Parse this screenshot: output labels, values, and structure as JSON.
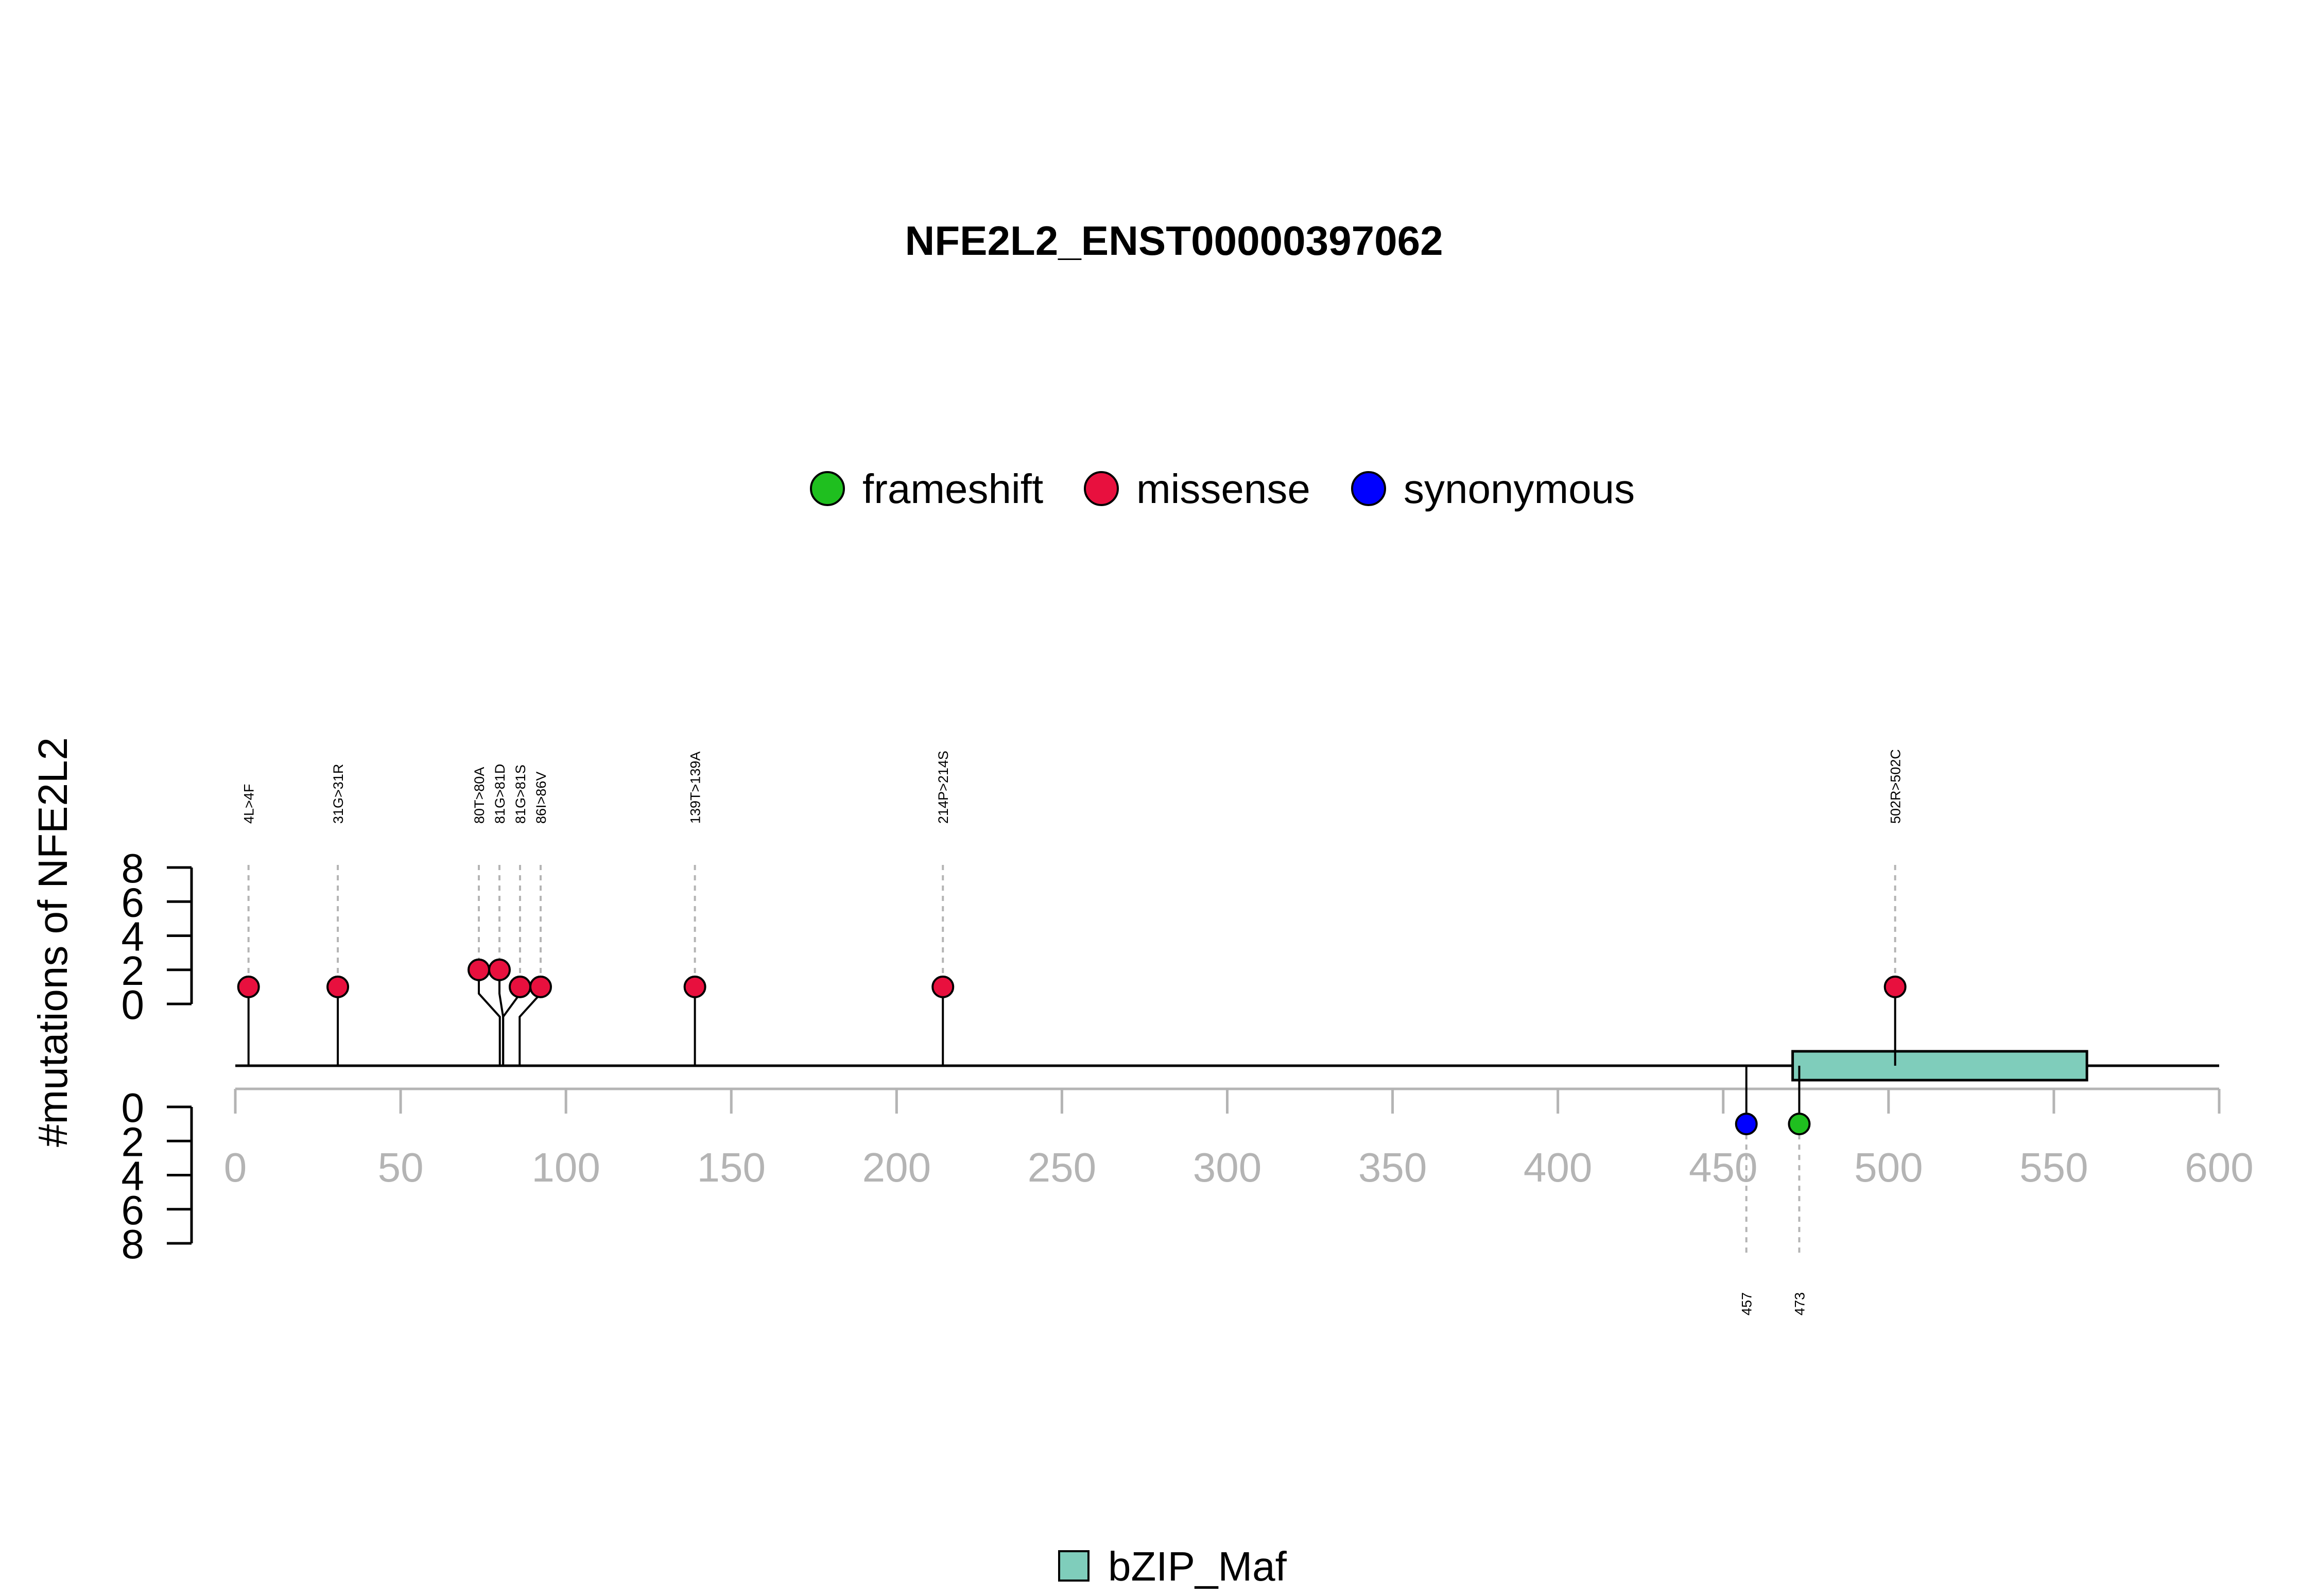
{
  "chart_data": {
    "type": "lollipop",
    "title": "NFE2L2_ENST00000397062",
    "ylabel": "#mutations of NFE2L2",
    "xlim": [
      0,
      600
    ],
    "x_ticks": [
      0,
      50,
      100,
      150,
      200,
      250,
      300,
      350,
      400,
      450,
      500,
      550,
      600
    ],
    "y_ticks": [
      0,
      2,
      4,
      6,
      8
    ],
    "ylim_top": [
      0,
      8
    ],
    "ylim_bottom": [
      0,
      8
    ],
    "legend": {
      "placement": "top-center",
      "entries": [
        {
          "label": "frameshift",
          "color": "#1fbf1f"
        },
        {
          "label": "missense",
          "color": "#e8103e"
        },
        {
          "label": "synonymous",
          "color": "#0000ff"
        }
      ]
    },
    "domains": [
      {
        "name": "bZIP_Maf",
        "start": 471,
        "end": 560,
        "color": "#7fcdbb"
      }
    ],
    "domain_legend": [
      {
        "label": "bZIP_Maf",
        "color": "#7fcdbb"
      }
    ],
    "mutations_top": [
      {
        "label": "4L>4F",
        "position": 4,
        "count": 1,
        "type": "missense"
      },
      {
        "label": "31G>31R",
        "position": 31,
        "count": 1,
        "type": "missense"
      },
      {
        "label": "80T>80A",
        "position": 80,
        "count": 2,
        "type": "missense"
      },
      {
        "label": "81G>81D",
        "position": 81,
        "count": 2,
        "type": "missense"
      },
      {
        "label": "81G>81S",
        "position": 81,
        "count": 1,
        "type": "missense"
      },
      {
        "label": "86I>86V",
        "position": 86,
        "count": 1,
        "type": "missense"
      },
      {
        "label": "139T>139A",
        "position": 139,
        "count": 1,
        "type": "missense"
      },
      {
        "label": "214P>214S",
        "position": 214,
        "count": 1,
        "type": "missense"
      },
      {
        "label": "502R>502C",
        "position": 502,
        "count": 1,
        "type": "missense"
      }
    ],
    "mutations_bottom": [
      {
        "label": "457",
        "position": 457,
        "count": 1,
        "type": "synonymous"
      },
      {
        "label": "473",
        "position": 473,
        "count": 1,
        "type": "frameshift"
      }
    ]
  }
}
